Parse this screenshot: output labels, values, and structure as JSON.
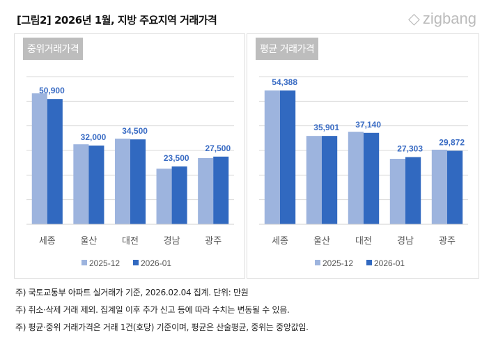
{
  "title": "[그림2] 2026년 1월, 지방 주요지역 거래가격",
  "logo": "zigbang",
  "chart_data": [
    {
      "type": "bar",
      "title": "중위거래가격",
      "categories": [
        "세종",
        "울산",
        "대전",
        "경남",
        "광주"
      ],
      "ylim": [
        0,
        60000
      ],
      "grid": true,
      "series": [
        {
          "name": "2025-12",
          "color": "#9db4de",
          "values": [
            53200,
            32500,
            34800,
            22600,
            26900
          ]
        },
        {
          "name": "2026-01",
          "color": "#3169c0",
          "values": [
            50900,
            32000,
            34500,
            23500,
            27500
          ],
          "labels": [
            "50,900",
            "32,000",
            "34,500",
            "23,500",
            "27,500"
          ]
        }
      ],
      "legend": "bottom"
    },
    {
      "type": "bar",
      "title": "평균 거래가격",
      "categories": [
        "세종",
        "울산",
        "대전",
        "경남",
        "광주"
      ],
      "ylim": [
        0,
        60000
      ],
      "grid": true,
      "series": [
        {
          "name": "2025-12",
          "color": "#9db4de",
          "values": [
            54400,
            35900,
            37600,
            26600,
            30300
          ]
        },
        {
          "name": "2026-01",
          "color": "#3169c0",
          "values": [
            54388,
            35901,
            37140,
            27303,
            29872
          ],
          "labels": [
            "54,388",
            "35,901",
            "37,140",
            "27,303",
            "29,872"
          ]
        }
      ],
      "legend": "bottom"
    }
  ],
  "notes": [
    "주) 국토교통부 아파트 실거래가 기준, 2026.02.04 집계. 단위: 만원",
    "주) 취소·삭제 거래 제외. 집계일 이후 추가 신고 등에 따라 수치는 변동될 수 있음.",
    "주) 평균·중위 거래가격은 거래 1건(호당) 기준이며, 평균은 산술평균, 중위는 중앙값임."
  ]
}
